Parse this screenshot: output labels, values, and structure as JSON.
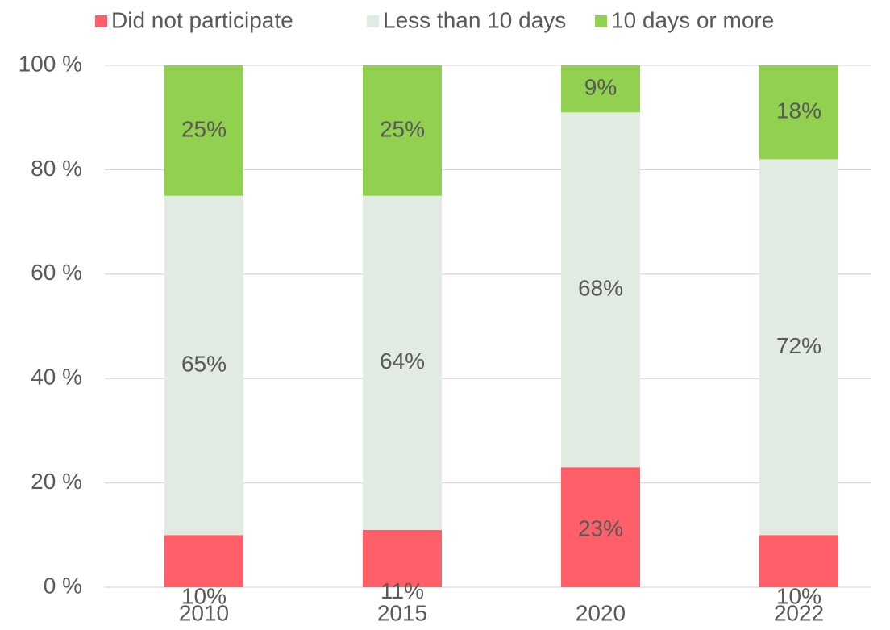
{
  "chart_data": {
    "type": "stacked_bar",
    "categories": [
      "2010",
      "2015",
      "2020",
      "2022"
    ],
    "series": [
      {
        "name": "Did not participate",
        "color": "#ff5f69",
        "values": [
          10,
          11,
          23,
          10
        ],
        "value_labels": [
          "10%",
          "11%",
          "23%",
          "10%"
        ]
      },
      {
        "name": "Less than 10 days",
        "color": "#e2ebe1",
        "values": [
          65,
          64,
          68,
          72
        ],
        "value_labels": [
          "65%",
          "64%",
          "68%",
          "72%"
        ]
      },
      {
        "name": "10 days or more",
        "color": "#92d050",
        "values": [
          25,
          25,
          9,
          18
        ],
        "value_labels": [
          "25%",
          "25%",
          "9%",
          "18%"
        ]
      }
    ],
    "ylim": [
      0,
      100
    ],
    "yticks": [
      {
        "value": 0,
        "label": "0 %"
      },
      {
        "value": 20,
        "label": "20 %"
      },
      {
        "value": 40,
        "label": "40 %"
      },
      {
        "value": 60,
        "label": "60 %"
      },
      {
        "value": 80,
        "label": "80 %"
      },
      {
        "value": 100,
        "label": "100 %"
      }
    ],
    "grid": true,
    "legend": "top"
  }
}
